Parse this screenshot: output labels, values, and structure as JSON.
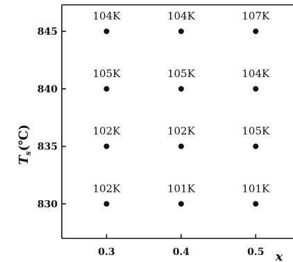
{
  "chart_data": {
    "type": "scatter",
    "title": "",
    "xlabel": "x",
    "ylabel_main": "T",
    "ylabel_sub": "s",
    "ylabel_unit": "(℃)",
    "xlim": [
      0.24,
      0.55
    ],
    "ylim": [
      827,
      847.3
    ],
    "xticks": [
      0.3,
      0.4,
      0.5
    ],
    "xtick_labels": [
      "0.3",
      "0.4",
      "0.5"
    ],
    "yticks": [
      830,
      835,
      840,
      845
    ],
    "ytick_labels": [
      "830",
      "835",
      "840",
      "845"
    ],
    "grid": false,
    "points": [
      {
        "x": 0.3,
        "y": 845,
        "label": "104K"
      },
      {
        "x": 0.4,
        "y": 845,
        "label": "104K"
      },
      {
        "x": 0.5,
        "y": 845,
        "label": "107K"
      },
      {
        "x": 0.3,
        "y": 840,
        "label": "105K"
      },
      {
        "x": 0.4,
        "y": 840,
        "label": "105K"
      },
      {
        "x": 0.5,
        "y": 840,
        "label": "104K"
      },
      {
        "x": 0.3,
        "y": 835,
        "label": "102K"
      },
      {
        "x": 0.4,
        "y": 835,
        "label": "102K"
      },
      {
        "x": 0.5,
        "y": 835,
        "label": "105K"
      },
      {
        "x": 0.3,
        "y": 830,
        "label": "102K"
      },
      {
        "x": 0.4,
        "y": 830,
        "label": "101K"
      },
      {
        "x": 0.5,
        "y": 830,
        "label": "101K"
      }
    ],
    "marker_color": "#111111"
  }
}
